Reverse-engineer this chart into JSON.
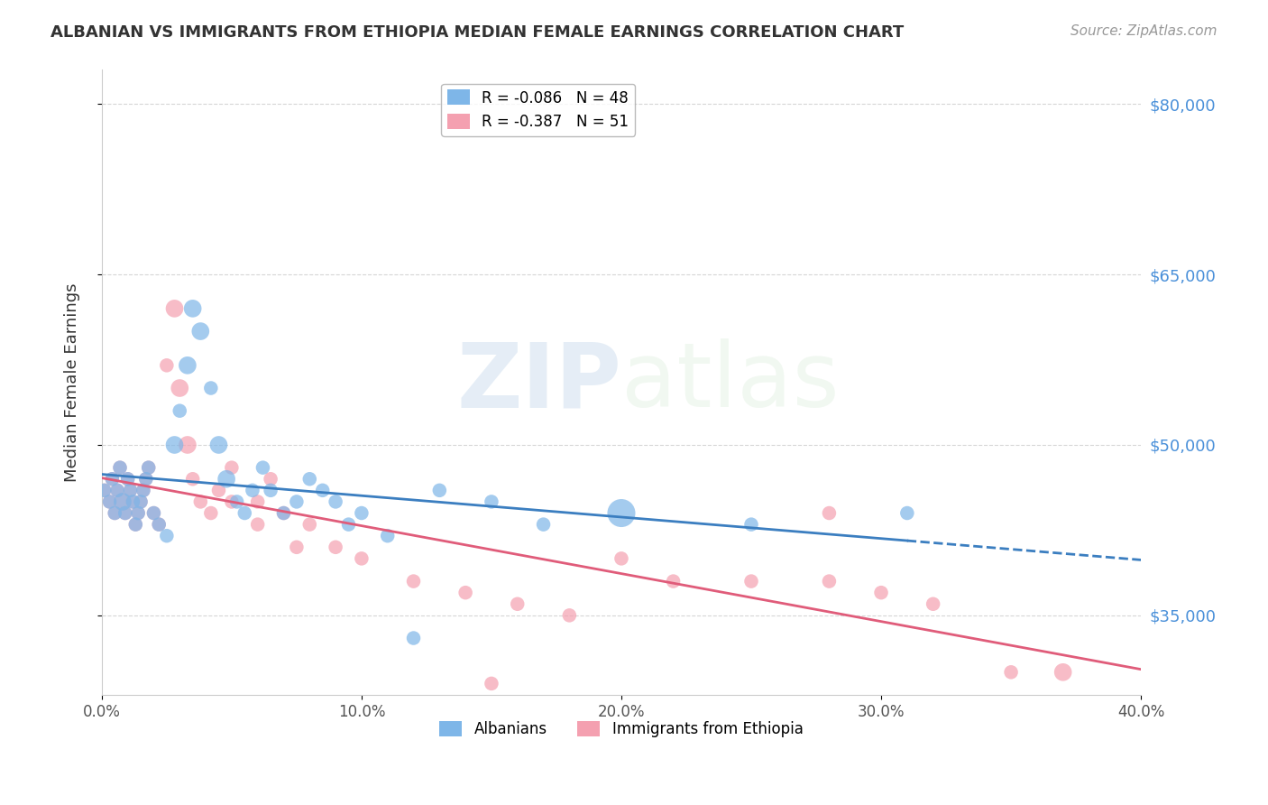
{
  "title": "ALBANIAN VS IMMIGRANTS FROM ETHIOPIA MEDIAN FEMALE EARNINGS CORRELATION CHART",
  "source": "Source: ZipAtlas.com",
  "ylabel": "Median Female Earnings",
  "xlabel": "",
  "xlim": [
    0.0,
    0.4
  ],
  "ylim": [
    28000,
    83000
  ],
  "yticks": [
    35000,
    50000,
    65000,
    80000
  ],
  "ytick_labels": [
    "$35,000",
    "$50,000",
    "$65,000",
    "$80,000"
  ],
  "xticks": [
    0.0,
    0.1,
    0.2,
    0.3,
    0.4
  ],
  "xtick_labels": [
    "0.0%",
    "10.0%",
    "20.0%",
    "30.0%",
    "40.0%"
  ],
  "albanians_R": -0.086,
  "albanians_N": 48,
  "ethiopia_R": -0.387,
  "ethiopia_N": 51,
  "blue_color": "#7EB6E8",
  "pink_color": "#F4A0B0",
  "blue_line_color": "#3B7EC0",
  "pink_line_color": "#E05C7A",
  "grid_color": "#CCCCCC",
  "watermark_zip": "ZIP",
  "watermark_atlas": "atlas",
  "albanians_x": [
    0.001,
    0.003,
    0.004,
    0.005,
    0.006,
    0.007,
    0.008,
    0.009,
    0.01,
    0.011,
    0.012,
    0.013,
    0.014,
    0.015,
    0.016,
    0.017,
    0.018,
    0.02,
    0.022,
    0.025,
    0.028,
    0.03,
    0.033,
    0.035,
    0.038,
    0.042,
    0.045,
    0.048,
    0.052,
    0.055,
    0.058,
    0.062,
    0.065,
    0.07,
    0.075,
    0.08,
    0.085,
    0.09,
    0.095,
    0.1,
    0.11,
    0.12,
    0.13,
    0.15,
    0.17,
    0.2,
    0.25,
    0.31
  ],
  "albanians_y": [
    46000,
    45000,
    47000,
    44000,
    46000,
    48000,
    45000,
    44000,
    47000,
    46000,
    45000,
    43000,
    44000,
    45000,
    46000,
    47000,
    48000,
    44000,
    43000,
    42000,
    50000,
    53000,
    57000,
    62000,
    60000,
    55000,
    50000,
    47000,
    45000,
    44000,
    46000,
    48000,
    46000,
    44000,
    45000,
    47000,
    46000,
    45000,
    43000,
    44000,
    42000,
    33000,
    46000,
    45000,
    43000,
    44000,
    43000,
    44000
  ],
  "albania_sizes": [
    50,
    50,
    50,
    50,
    50,
    50,
    80,
    50,
    50,
    50,
    50,
    50,
    50,
    50,
    50,
    50,
    50,
    50,
    50,
    50,
    80,
    50,
    80,
    80,
    80,
    50,
    80,
    80,
    50,
    50,
    50,
    50,
    50,
    50,
    50,
    50,
    50,
    50,
    50,
    50,
    50,
    50,
    50,
    50,
    50,
    200,
    50,
    50
  ],
  "ethiopia_x": [
    0.001,
    0.003,
    0.004,
    0.005,
    0.006,
    0.007,
    0.008,
    0.009,
    0.01,
    0.011,
    0.012,
    0.013,
    0.014,
    0.015,
    0.016,
    0.017,
    0.018,
    0.02,
    0.022,
    0.025,
    0.028,
    0.03,
    0.033,
    0.035,
    0.038,
    0.042,
    0.045,
    0.05,
    0.06,
    0.07,
    0.08,
    0.09,
    0.1,
    0.12,
    0.14,
    0.16,
    0.18,
    0.2,
    0.22,
    0.25,
    0.28,
    0.3,
    0.32,
    0.35,
    0.28,
    0.15,
    0.05,
    0.06,
    0.065,
    0.075,
    0.37
  ],
  "ethiopia_y": [
    46000,
    45000,
    47000,
    44000,
    46000,
    48000,
    45000,
    44000,
    47000,
    46000,
    45000,
    43000,
    44000,
    45000,
    46000,
    47000,
    48000,
    44000,
    43000,
    57000,
    62000,
    55000,
    50000,
    47000,
    45000,
    44000,
    46000,
    48000,
    45000,
    44000,
    43000,
    41000,
    40000,
    38000,
    37000,
    36000,
    35000,
    40000,
    38000,
    38000,
    44000,
    37000,
    36000,
    30000,
    38000,
    29000,
    45000,
    43000,
    47000,
    41000,
    30000
  ],
  "ethiopia_sizes": [
    50,
    50,
    50,
    50,
    50,
    50,
    80,
    50,
    50,
    50,
    50,
    50,
    50,
    50,
    50,
    50,
    50,
    50,
    50,
    50,
    80,
    80,
    80,
    50,
    50,
    50,
    50,
    50,
    50,
    50,
    50,
    50,
    50,
    50,
    50,
    50,
    50,
    50,
    50,
    50,
    50,
    50,
    50,
    50,
    50,
    50,
    50,
    50,
    50,
    50,
    80
  ]
}
